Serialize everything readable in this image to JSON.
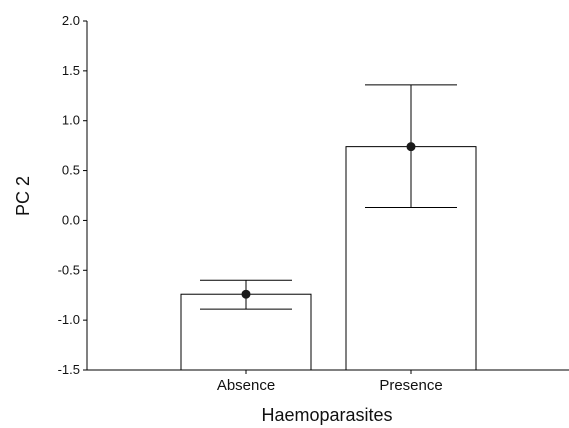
{
  "chart_data": {
    "type": "bar",
    "xlabel": "Haemoparasites",
    "ylabel": "PC 2",
    "categories": [
      "Absence",
      "Presence"
    ],
    "values": [
      -0.74,
      0.74
    ],
    "error_low": [
      -0.89,
      0.13
    ],
    "error_high": [
      -0.6,
      1.36
    ],
    "ylim": [
      -1.5,
      2.0
    ],
    "yticks": [
      "-1.5",
      "-1.0",
      "-0.5",
      "0.0",
      "0.5",
      "1.0",
      "1.5",
      "2.0"
    ],
    "grid": false,
    "bar_fill": "#ffffff",
    "bar_stroke": "#000000",
    "marker_color": "#1a1a1a"
  }
}
